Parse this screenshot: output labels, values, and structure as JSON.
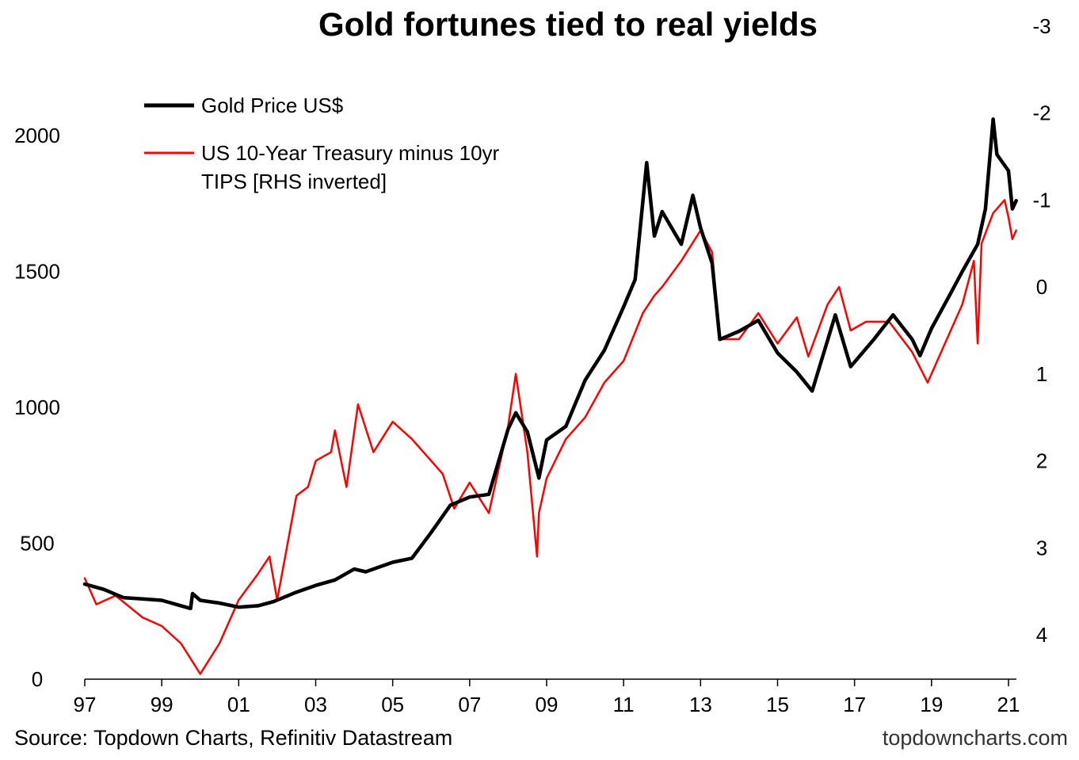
{
  "chart_data": {
    "type": "line",
    "title": "Gold fortunes tied to real yields",
    "x_ticks": [
      "97",
      "99",
      "01",
      "03",
      "05",
      "07",
      "09",
      "11",
      "13",
      "15",
      "17",
      "19",
      "21"
    ],
    "x_range": [
      1997,
      2021.2
    ],
    "y_left": {
      "ticks": [
        "0",
        "500",
        "1000",
        "1500",
        "2000"
      ],
      "range": [
        0,
        2000
      ]
    },
    "y_right": {
      "ticks": [
        "-3",
        "-2",
        "-1",
        "0",
        "1",
        "2",
        "3",
        "4"
      ],
      "range": [
        -3,
        4.5
      ],
      "inverted": true
    },
    "legend_position": "top-left",
    "grid": false,
    "series": [
      {
        "name": "Gold Price US$",
        "color": "#000000",
        "axis": "left",
        "points": [
          [
            1997.0,
            350
          ],
          [
            1997.5,
            330
          ],
          [
            1998.0,
            300
          ],
          [
            1998.5,
            295
          ],
          [
            1999.0,
            290
          ],
          [
            1999.5,
            270
          ],
          [
            1999.75,
            260
          ],
          [
            1999.8,
            315
          ],
          [
            2000.0,
            290
          ],
          [
            2000.5,
            280
          ],
          [
            2001.0,
            265
          ],
          [
            2001.5,
            270
          ],
          [
            2001.9,
            285
          ],
          [
            2002.5,
            320
          ],
          [
            2003.0,
            345
          ],
          [
            2003.5,
            365
          ],
          [
            2004.0,
            405
          ],
          [
            2004.3,
            395
          ],
          [
            2005.0,
            430
          ],
          [
            2005.5,
            445
          ],
          [
            2006.0,
            540
          ],
          [
            2006.5,
            640
          ],
          [
            2007.0,
            670
          ],
          [
            2007.5,
            680
          ],
          [
            2008.0,
            920
          ],
          [
            2008.2,
            980
          ],
          [
            2008.5,
            910
          ],
          [
            2008.8,
            740
          ],
          [
            2009.0,
            880
          ],
          [
            2009.5,
            930
          ],
          [
            2010.0,
            1100
          ],
          [
            2010.5,
            1210
          ],
          [
            2011.0,
            1370
          ],
          [
            2011.3,
            1470
          ],
          [
            2011.6,
            1900
          ],
          [
            2011.8,
            1630
          ],
          [
            2012.0,
            1720
          ],
          [
            2012.5,
            1600
          ],
          [
            2012.8,
            1780
          ],
          [
            2013.0,
            1660
          ],
          [
            2013.3,
            1530
          ],
          [
            2013.5,
            1250
          ],
          [
            2014.0,
            1280
          ],
          [
            2014.5,
            1320
          ],
          [
            2015.0,
            1200
          ],
          [
            2015.5,
            1130
          ],
          [
            2015.9,
            1060
          ],
          [
            2016.5,
            1340
          ],
          [
            2016.9,
            1150
          ],
          [
            2017.5,
            1250
          ],
          [
            2018.0,
            1340
          ],
          [
            2018.5,
            1250
          ],
          [
            2018.7,
            1190
          ],
          [
            2019.0,
            1290
          ],
          [
            2019.5,
            1420
          ],
          [
            2019.8,
            1500
          ],
          [
            2020.2,
            1600
          ],
          [
            2020.4,
            1730
          ],
          [
            2020.6,
            2060
          ],
          [
            2020.7,
            1930
          ],
          [
            2021.0,
            1870
          ],
          [
            2021.1,
            1730
          ],
          [
            2021.2,
            1760
          ]
        ]
      },
      {
        "name": "US 10-Year Treasury minus 10yr TIPS [RHS inverted]",
        "color": "#ff0000",
        "axis": "right",
        "points": [
          [
            1997.0,
            3.35
          ],
          [
            1997.3,
            3.65
          ],
          [
            1997.8,
            3.55
          ],
          [
            1998.5,
            3.8
          ],
          [
            1999.0,
            3.9
          ],
          [
            1999.5,
            4.1
          ],
          [
            2000.0,
            4.45
          ],
          [
            2000.5,
            4.1
          ],
          [
            2001.0,
            3.6
          ],
          [
            2001.5,
            3.3
          ],
          [
            2001.8,
            3.1
          ],
          [
            2002.0,
            3.6
          ],
          [
            2002.5,
            2.4
          ],
          [
            2002.8,
            2.3
          ],
          [
            2003.0,
            2.0
          ],
          [
            2003.4,
            1.9
          ],
          [
            2003.5,
            1.65
          ],
          [
            2003.8,
            2.3
          ],
          [
            2004.1,
            1.35
          ],
          [
            2004.5,
            1.9
          ],
          [
            2005.0,
            1.55
          ],
          [
            2005.5,
            1.75
          ],
          [
            2006.0,
            2.0
          ],
          [
            2006.3,
            2.15
          ],
          [
            2006.6,
            2.55
          ],
          [
            2007.0,
            2.25
          ],
          [
            2007.5,
            2.6
          ],
          [
            2008.0,
            1.6
          ],
          [
            2008.2,
            1.0
          ],
          [
            2008.5,
            1.9
          ],
          [
            2008.75,
            3.1
          ],
          [
            2008.8,
            2.6
          ],
          [
            2009.0,
            2.2
          ],
          [
            2009.5,
            1.75
          ],
          [
            2010.0,
            1.5
          ],
          [
            2010.5,
            1.1
          ],
          [
            2011.0,
            0.85
          ],
          [
            2011.5,
            0.3
          ],
          [
            2011.8,
            0.1
          ],
          [
            2012.0,
            0.0
          ],
          [
            2012.5,
            -0.3
          ],
          [
            2013.0,
            -0.65
          ],
          [
            2013.3,
            -0.4
          ],
          [
            2013.5,
            0.6
          ],
          [
            2014.0,
            0.6
          ],
          [
            2014.5,
            0.3
          ],
          [
            2015.0,
            0.65
          ],
          [
            2015.5,
            0.35
          ],
          [
            2015.8,
            0.8
          ],
          [
            2016.3,
            0.2
          ],
          [
            2016.6,
            0.0
          ],
          [
            2016.9,
            0.5
          ],
          [
            2017.3,
            0.4
          ],
          [
            2017.9,
            0.4
          ],
          [
            2018.5,
            0.75
          ],
          [
            2018.9,
            1.1
          ],
          [
            2019.3,
            0.7
          ],
          [
            2019.8,
            0.2
          ],
          [
            2020.1,
            -0.3
          ],
          [
            2020.2,
            0.65
          ],
          [
            2020.3,
            -0.5
          ],
          [
            2020.6,
            -0.85
          ],
          [
            2020.9,
            -1.0
          ],
          [
            2021.0,
            -0.8
          ],
          [
            2021.1,
            -0.55
          ],
          [
            2021.2,
            -0.65
          ]
        ]
      }
    ]
  },
  "footer": {
    "source": "Source: Topdown Charts, Refinitiv Datastream",
    "brand": "topdowncharts.com"
  }
}
